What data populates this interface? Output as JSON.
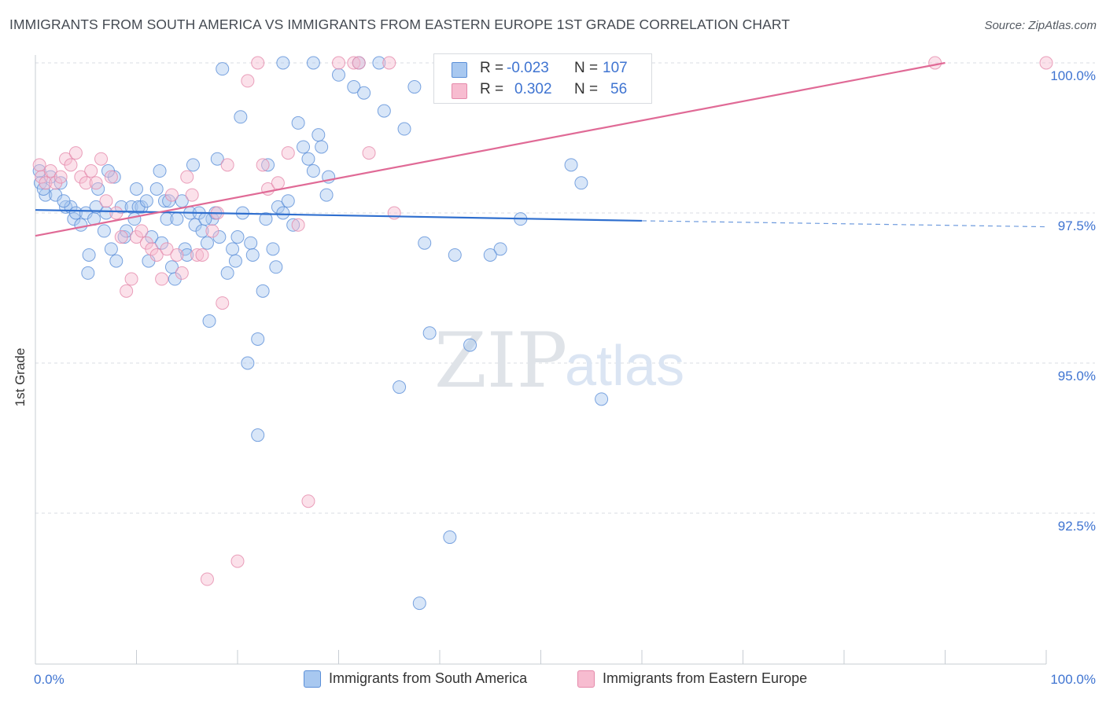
{
  "title": "IMMIGRANTS FROM SOUTH AMERICA VS IMMIGRANTS FROM EASTERN EUROPE 1ST GRADE CORRELATION CHART",
  "source": "Source: ZipAtlas.com",
  "watermark": {
    "zip": "ZIP",
    "atlas": "atlas"
  },
  "colors": {
    "blue_fill": "#a8c8f0",
    "blue_stroke": "#5b8fd8",
    "blue_line": "#2f6fcf",
    "pink_fill": "#f7bcd0",
    "pink_stroke": "#e58aab",
    "pink_line": "#e06a96",
    "tick_label": "#3f74d1",
    "grid": "#d9dde3"
  },
  "stats": [
    {
      "r_label": "R =",
      "r_value": "-0.023",
      "n_label": "N =",
      "n_value": "107"
    },
    {
      "r_label": "R =",
      "r_value": "0.302",
      "n_label": "N =",
      "n_value": "56"
    }
  ],
  "legend": [
    {
      "label": "Immigrants from South America"
    },
    {
      "label": "Immigrants from Eastern Europe"
    }
  ],
  "chart_data": {
    "type": "scatter",
    "title": "IMMIGRANTS FROM SOUTH AMERICA VS IMMIGRANTS FROM EASTERN EUROPE 1ST GRADE CORRELATION CHART",
    "xlabel": "",
    "ylabel": "1st Grade",
    "xlim": [
      0,
      100
    ],
    "ylim": [
      90.0,
      100.45
    ],
    "x_tick_labels": {
      "left": "0.0%",
      "right": "100.0%"
    },
    "y_ticks": [
      {
        "value": 100.0,
        "label": "100.0%"
      },
      {
        "value": 97.5,
        "label": "97.5%"
      },
      {
        "value": 95.0,
        "label": "95.0%"
      },
      {
        "value": 92.5,
        "label": "92.5%"
      }
    ],
    "grid": true,
    "series": [
      {
        "name": "Immigrants from South America",
        "color": "blue",
        "trend": {
          "x0": 0,
          "y0": 97.55,
          "x1": 60,
          "y1": 97.37,
          "dash_to_x": 100,
          "dash_to_y": 97.27
        },
        "points": [
          [
            0.4,
            98.2
          ],
          [
            0.5,
            98.0
          ],
          [
            1.0,
            97.8
          ],
          [
            1.5,
            98.1
          ],
          [
            2.0,
            97.8
          ],
          [
            2.5,
            98.0
          ],
          [
            3.0,
            97.6
          ],
          [
            3.5,
            97.6
          ],
          [
            3.8,
            97.4
          ],
          [
            4.0,
            97.5
          ],
          [
            4.5,
            97.3
          ],
          [
            5.0,
            97.5
          ],
          [
            5.3,
            96.8
          ],
          [
            5.2,
            96.5
          ],
          [
            6.0,
            97.6
          ],
          [
            6.2,
            97.9
          ],
          [
            7.0,
            97.5
          ],
          [
            7.5,
            96.9
          ],
          [
            7.8,
            98.1
          ],
          [
            8.0,
            96.7
          ],
          [
            8.5,
            97.6
          ],
          [
            8.8,
            97.1
          ],
          [
            9.5,
            97.6
          ],
          [
            9.8,
            97.4
          ],
          [
            10.0,
            97.9
          ],
          [
            10.5,
            97.6
          ],
          [
            10.2,
            97.6
          ],
          [
            11.0,
            97.7
          ],
          [
            11.2,
            96.7
          ],
          [
            11.5,
            97.1
          ],
          [
            12.0,
            97.9
          ],
          [
            12.3,
            98.2
          ],
          [
            12.8,
            97.7
          ],
          [
            13.0,
            97.4
          ],
          [
            13.2,
            97.7
          ],
          [
            13.5,
            96.6
          ],
          [
            13.8,
            96.4
          ],
          [
            14.0,
            97.4
          ],
          [
            14.5,
            97.7
          ],
          [
            14.8,
            96.9
          ],
          [
            15.0,
            96.8
          ],
          [
            15.3,
            97.5
          ],
          [
            15.6,
            98.3
          ],
          [
            15.8,
            97.3
          ],
          [
            16.2,
            97.5
          ],
          [
            16.5,
            97.2
          ],
          [
            17.0,
            97.0
          ],
          [
            17.2,
            95.7
          ],
          [
            17.5,
            97.4
          ],
          [
            17.8,
            97.5
          ],
          [
            18.0,
            98.4
          ],
          [
            18.2,
            97.1
          ],
          [
            18.5,
            99.9
          ],
          [
            19.0,
            96.5
          ],
          [
            19.5,
            96.9
          ],
          [
            19.8,
            96.7
          ],
          [
            20.0,
            97.1
          ],
          [
            20.5,
            97.5
          ],
          [
            20.3,
            99.1
          ],
          [
            21.0,
            95.0
          ],
          [
            21.3,
            97.0
          ],
          [
            21.5,
            96.8
          ],
          [
            22.0,
            95.4
          ],
          [
            22.0,
            93.8
          ],
          [
            22.5,
            96.2
          ],
          [
            22.8,
            97.4
          ],
          [
            23.0,
            98.3
          ],
          [
            23.5,
            96.9
          ],
          [
            23.8,
            96.6
          ],
          [
            24.0,
            97.6
          ],
          [
            24.5,
            97.5
          ],
          [
            25.0,
            97.7
          ],
          [
            25.5,
            97.3
          ],
          [
            24.5,
            100.0
          ],
          [
            26.0,
            99.0
          ],
          [
            26.5,
            98.6
          ],
          [
            27.0,
            98.4
          ],
          [
            27.5,
            98.2
          ],
          [
            28.0,
            98.8
          ],
          [
            28.3,
            98.6
          ],
          [
            29.0,
            98.1
          ],
          [
            27.5,
            100.0
          ],
          [
            28.8,
            97.8
          ],
          [
            30.0,
            99.8
          ],
          [
            31.5,
            99.6
          ],
          [
            32.0,
            100.0
          ],
          [
            32.5,
            99.5
          ],
          [
            34.0,
            100.0
          ],
          [
            34.5,
            99.2
          ],
          [
            36.0,
            94.6
          ],
          [
            38.0,
            91.0
          ],
          [
            37.5,
            99.6
          ],
          [
            36.5,
            98.9
          ],
          [
            39.0,
            95.5
          ],
          [
            38.5,
            97.0
          ],
          [
            41.0,
            92.1
          ],
          [
            43.0,
            95.3
          ],
          [
            46.0,
            96.9
          ],
          [
            48.0,
            97.4
          ],
          [
            56.0,
            94.4
          ],
          [
            45.0,
            96.8
          ],
          [
            41.5,
            96.8
          ],
          [
            53.0,
            98.3
          ],
          [
            54.0,
            98.0
          ],
          [
            0.8,
            97.9
          ],
          [
            2.8,
            97.7
          ],
          [
            6.8,
            97.2
          ],
          [
            9.0,
            97.2
          ],
          [
            12.5,
            97.0
          ],
          [
            7.2,
            98.2
          ],
          [
            16.8,
            97.4
          ],
          [
            5.8,
            97.4
          ]
        ]
      },
      {
        "name": "Immigrants from Eastern Europe",
        "color": "pink",
        "trend": {
          "x0": 0,
          "y0": 97.12,
          "x1": 90,
          "y1": 100.0
        },
        "points": [
          [
            0.4,
            98.3
          ],
          [
            0.6,
            98.1
          ],
          [
            1.0,
            98.0
          ],
          [
            1.5,
            98.2
          ],
          [
            2.0,
            98.0
          ],
          [
            2.5,
            98.1
          ],
          [
            3.0,
            98.4
          ],
          [
            3.5,
            98.3
          ],
          [
            4.0,
            98.5
          ],
          [
            4.5,
            98.1
          ],
          [
            5.0,
            98.0
          ],
          [
            5.5,
            98.2
          ],
          [
            6.0,
            98.0
          ],
          [
            6.5,
            98.4
          ],
          [
            7.0,
            97.7
          ],
          [
            7.5,
            98.1
          ],
          [
            8.0,
            97.5
          ],
          [
            8.5,
            97.1
          ],
          [
            9.0,
            96.2
          ],
          [
            9.5,
            96.4
          ],
          [
            10.0,
            97.1
          ],
          [
            10.5,
            97.2
          ],
          [
            11.0,
            97.0
          ],
          [
            11.5,
            96.9
          ],
          [
            12.0,
            96.8
          ],
          [
            12.5,
            96.4
          ],
          [
            13.0,
            96.9
          ],
          [
            13.5,
            97.8
          ],
          [
            14.0,
            96.8
          ],
          [
            14.5,
            96.5
          ],
          [
            15.0,
            98.1
          ],
          [
            15.5,
            97.8
          ],
          [
            16.0,
            96.8
          ],
          [
            16.5,
            96.8
          ],
          [
            17.0,
            91.4
          ],
          [
            17.5,
            97.2
          ],
          [
            18.0,
            97.5
          ],
          [
            18.5,
            96.0
          ],
          [
            19.0,
            98.3
          ],
          [
            20.0,
            91.7
          ],
          [
            21.0,
            99.7
          ],
          [
            22.0,
            100.0
          ],
          [
            22.5,
            98.3
          ],
          [
            23.0,
            97.9
          ],
          [
            24.0,
            98.0
          ],
          [
            25.0,
            98.5
          ],
          [
            26.0,
            97.3
          ],
          [
            27.0,
            92.7
          ],
          [
            30.0,
            100.0
          ],
          [
            31.5,
            100.0
          ],
          [
            32.0,
            100.0
          ],
          [
            33.0,
            98.5
          ],
          [
            35.0,
            100.0
          ],
          [
            35.5,
            97.5
          ],
          [
            89.0,
            100.0
          ],
          [
            100.0,
            100.0
          ]
        ]
      }
    ]
  }
}
